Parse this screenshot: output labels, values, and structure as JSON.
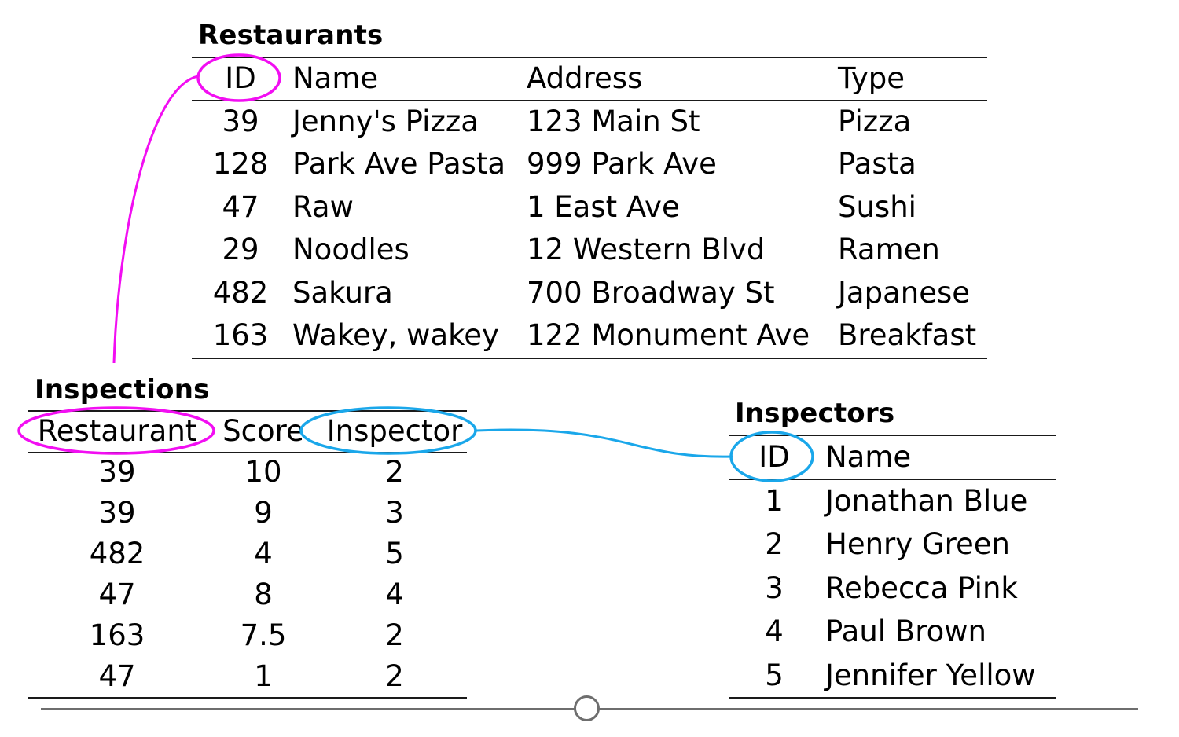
{
  "colors": {
    "restaurant_link": "#f20ef2",
    "inspector_link": "#1aa7ea",
    "rule": "#1a1a1a",
    "slider": "#6e6e6e"
  },
  "restaurants": {
    "title": "Restaurants",
    "headers": [
      "ID",
      "Name",
      "Address",
      "Type"
    ],
    "rows": [
      [
        "39",
        "Jenny's Pizza",
        "123 Main St",
        "Pizza"
      ],
      [
        "128",
        "Park Ave Pasta",
        "999 Park Ave",
        "Pasta"
      ],
      [
        "47",
        "Raw",
        "1 East Ave",
        "Sushi"
      ],
      [
        "29",
        "Noodles",
        "12 Western Blvd",
        "Ramen"
      ],
      [
        "482",
        "Sakura",
        "700 Broadway St",
        "Japanese"
      ],
      [
        "163",
        "Wakey, wakey",
        "122 Monument Ave",
        "Breakfast"
      ]
    ]
  },
  "inspections": {
    "title": "Inspections",
    "headers": [
      "Restaurant",
      "Score",
      "Inspector"
    ],
    "rows": [
      [
        "39",
        "10",
        "2"
      ],
      [
        "39",
        "9",
        "3"
      ],
      [
        "482",
        "4",
        "5"
      ],
      [
        "47",
        "8",
        "4"
      ],
      [
        "163",
        "7.5",
        "2"
      ],
      [
        "47",
        "1",
        "2"
      ]
    ]
  },
  "inspectors": {
    "title": "Inspectors",
    "headers": [
      "ID",
      "Name"
    ],
    "rows": [
      [
        "1",
        "Jonathan Blue"
      ],
      [
        "2",
        "Henry Green"
      ],
      [
        "3",
        "Rebecca Pink"
      ],
      [
        "4",
        "Paul Brown"
      ],
      [
        "5",
        "Jennifer Yellow"
      ]
    ]
  },
  "slider": {
    "value": 0.5
  }
}
